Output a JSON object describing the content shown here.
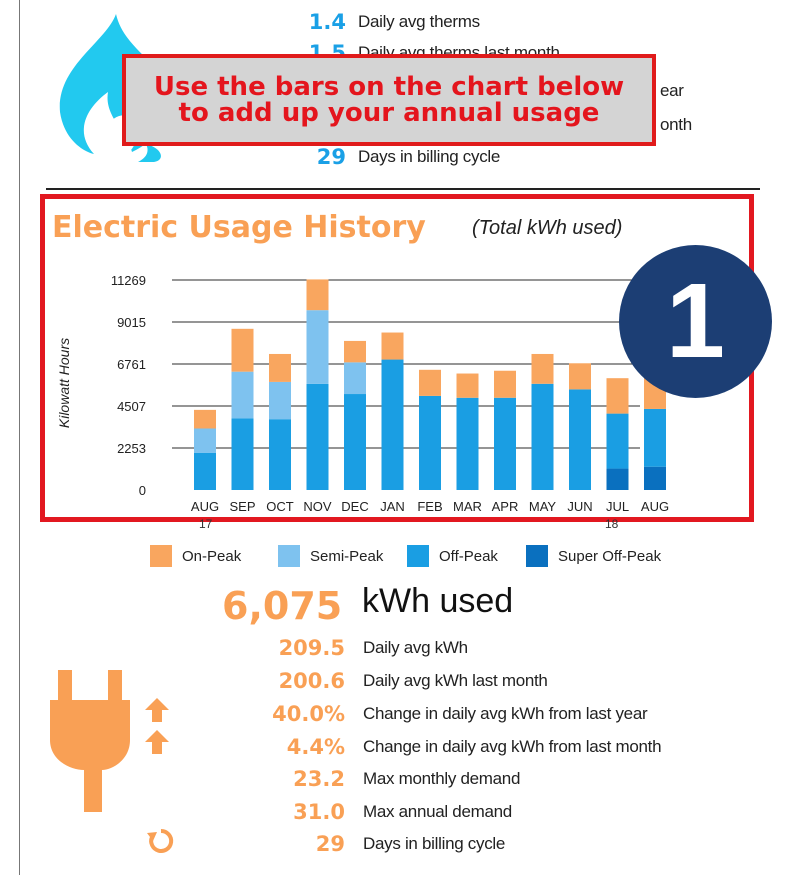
{
  "gas": {
    "rows": [
      {
        "value": "1.4",
        "label": "Daily avg therms"
      },
      {
        "value": "1.5",
        "label": "Daily avg therms last month"
      },
      {
        "value": "",
        "label": "ear"
      },
      {
        "value": "",
        "label": "onth"
      },
      {
        "value": "29",
        "label": "Days in billing cycle"
      }
    ]
  },
  "callout": {
    "line1": "Use the bars on the chart below",
    "line2": "to add up your annual usage"
  },
  "chart_title": "Electric Usage History",
  "chart_subtitle": "(Total kWh used)",
  "badge": "1",
  "year_start": "17",
  "year_end": "18",
  "chart_data": {
    "type": "bar",
    "stacked": true,
    "title": "Electric Usage History",
    "subtitle": "(Total kWh used)",
    "ylabel": "Kilowatt Hours",
    "xlabel": "",
    "yticks": [
      0,
      2253,
      4507,
      6761,
      9015,
      11269
    ],
    "ylim": [
      0,
      11269
    ],
    "categories": [
      "AUG",
      "SEP",
      "OCT",
      "NOV",
      "DEC",
      "JAN",
      "FEB",
      "MAR",
      "APR",
      "MAY",
      "JUN",
      "JUL",
      "AUG"
    ],
    "series": [
      {
        "name": "Super Off-Peak",
        "color": "#0a70bf",
        "values": [
          0,
          0,
          0,
          0,
          0,
          0,
          0,
          0,
          0,
          0,
          0,
          1150,
          1250
        ]
      },
      {
        "name": "Off-Peak",
        "color": "#1a9ee3",
        "values": [
          2000,
          3850,
          3800,
          5700,
          5150,
          7000,
          5050,
          4950,
          4950,
          5700,
          5400,
          2950,
          3100
        ]
      },
      {
        "name": "Semi-Peak",
        "color": "#7ec2ef",
        "values": [
          1300,
          2500,
          2000,
          3950,
          1700,
          0,
          0,
          0,
          0,
          0,
          0,
          0,
          0
        ]
      },
      {
        "name": "On-Peak",
        "color": "#f9a65f",
        "values": [
          1000,
          2300,
          1500,
          1650,
          1150,
          1450,
          1400,
          1300,
          1450,
          1600,
          1400,
          1900,
          1700
        ]
      }
    ],
    "grid": true,
    "legend": "bottom"
  },
  "legend": [
    {
      "label": "On-Peak",
      "color": "#f9a65f"
    },
    {
      "label": "Semi-Peak",
      "color": "#7ec2ef"
    },
    {
      "label": "Off-Peak",
      "color": "#1a9ee3"
    },
    {
      "label": "Super Off-Peak",
      "color": "#0a70bf"
    }
  ],
  "electric": {
    "total": "6,075",
    "total_label": "kWh used",
    "rows": [
      {
        "value": "209.5",
        "label": "Daily avg kWh"
      },
      {
        "value": "200.6",
        "label": "Daily avg kWh last month"
      },
      {
        "value": "40.0%",
        "label": "Change in daily avg kWh from last year"
      },
      {
        "value": "4.4%",
        "label": "Change in daily avg kWh from last month"
      },
      {
        "value": "23.2",
        "label": "Max monthly demand"
      },
      {
        "value": "31.0",
        "label": "Max annual demand"
      },
      {
        "value": "29",
        "label": "Days in billing cycle"
      }
    ]
  },
  "colors": {
    "gas_blue": "#1aa0e6",
    "electric_orange": "#f9a055",
    "callout_red": "#e4151d",
    "badge_navy": "#1c3e74"
  }
}
